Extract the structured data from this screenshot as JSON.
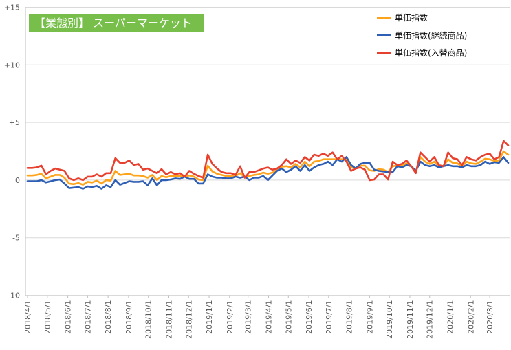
{
  "title_box_color": "#77bf4a",
  "chart_data": {
    "type": "line",
    "title": "【業態別】 スーパーマーケット",
    "xlabel": "",
    "ylabel": "",
    "xlim": [
      "2018/4/1",
      "2020/3/29"
    ],
    "ylim": [
      -10,
      15
    ],
    "y_ticks": [
      15,
      10,
      5,
      0,
      -5,
      -10
    ],
    "y_tick_labels": [
      "+15",
      "+10",
      "+5",
      "0",
      "-5",
      "-10"
    ],
    "x_ticks": [
      "2018/4/1",
      "2018/5/1",
      "2018/6/1",
      "2018/7/1",
      "2018/8/1",
      "2018/9/1",
      "2018/10/1",
      "2018/11/1",
      "2018/12/1",
      "2019/1/1",
      "2019/2/1",
      "2019/3/1",
      "2019/4/1",
      "2019/5/1",
      "2019/6/1",
      "2019/7/1",
      "2019/8/1",
      "2019/9/1",
      "2019/10/1",
      "2019/11/1",
      "2019/12/1",
      "2020/1/1",
      "2020/2/1",
      "2020/3/1"
    ],
    "grid": true,
    "legend_position": "top-right",
    "x": [
      "2018/4/1",
      "2018/4/8",
      "2018/4/15",
      "2018/4/22",
      "2018/4/29",
      "2018/5/6",
      "2018/5/13",
      "2018/5/20",
      "2018/5/27",
      "2018/6/3",
      "2018/6/10",
      "2018/6/17",
      "2018/6/24",
      "2018/7/1",
      "2018/7/8",
      "2018/7/15",
      "2018/7/22",
      "2018/7/29",
      "2018/8/5",
      "2018/8/12",
      "2018/8/19",
      "2018/8/26",
      "2018/9/2",
      "2018/9/9",
      "2018/9/16",
      "2018/9/23",
      "2018/9/30",
      "2018/10/7",
      "2018/10/14",
      "2018/10/21",
      "2018/10/28",
      "2018/11/4",
      "2018/11/11",
      "2018/11/18",
      "2018/11/25",
      "2018/12/2",
      "2018/12/9",
      "2018/12/16",
      "2018/12/23",
      "2018/12/30",
      "2019/1/6",
      "2019/1/13",
      "2019/1/20",
      "2019/1/27",
      "2019/2/3",
      "2019/2/10",
      "2019/2/17",
      "2019/2/24",
      "2019/3/3",
      "2019/3/10",
      "2019/3/17",
      "2019/3/24",
      "2019/3/31",
      "2019/4/7",
      "2019/4/14",
      "2019/4/21",
      "2019/4/28",
      "2019/5/5",
      "2019/5/12",
      "2019/5/19",
      "2019/5/26",
      "2019/6/2",
      "2019/6/9",
      "2019/6/16",
      "2019/6/23",
      "2019/6/30",
      "2019/7/7",
      "2019/7/14",
      "2019/7/21",
      "2019/7/28",
      "2019/8/4",
      "2019/8/11",
      "2019/8/18",
      "2019/8/25",
      "2019/9/1",
      "2019/9/8",
      "2019/9/15",
      "2019/9/22",
      "2019/9/29",
      "2019/10/6",
      "2019/10/13",
      "2019/10/20",
      "2019/10/27",
      "2019/11/3",
      "2019/11/10",
      "2019/11/17",
      "2019/11/24",
      "2019/12/1",
      "2019/12/8",
      "2019/12/15",
      "2019/12/22",
      "2019/12/29",
      "2020/1/5",
      "2020/1/12",
      "2020/1/19",
      "2020/1/26",
      "2020/2/2",
      "2020/2/9",
      "2020/2/16",
      "2020/2/23",
      "2020/3/1",
      "2020/3/8",
      "2020/3/15",
      "2020/3/22",
      "2020/3/29"
    ],
    "series": [
      {
        "name": "単価指数",
        "color": "#ffa31a",
        "values": [
          0.4,
          0.4,
          0.45,
          0.55,
          0.15,
          0.3,
          0.45,
          0.45,
          0.2,
          -0.3,
          -0.35,
          -0.25,
          -0.4,
          -0.15,
          -0.2,
          -0.05,
          -0.3,
          0.0,
          -0.05,
          0.8,
          0.45,
          0.5,
          0.55,
          0.4,
          0.4,
          0.35,
          0.2,
          0.45,
          0.0,
          0.35,
          0.25,
          0.35,
          0.35,
          0.35,
          0.3,
          0.4,
          0.3,
          0.05,
          0.0,
          1.25,
          0.75,
          0.55,
          0.45,
          0.35,
          0.35,
          0.35,
          0.6,
          0.25,
          0.35,
          0.45,
          0.5,
          0.65,
          0.55,
          0.65,
          0.9,
          1.15,
          1.2,
          1.1,
          1.4,
          1.1,
          1.6,
          1.2,
          1.6,
          1.65,
          1.8,
          1.8,
          1.8,
          1.8,
          1.8,
          1.8,
          1.1,
          1.0,
          1.25,
          1.25,
          0.85,
          0.8,
          0.95,
          0.9,
          0.7,
          1.2,
          1.25,
          1.25,
          1.45,
          1.2,
          0.7,
          2.0,
          1.6,
          1.4,
          1.6,
          1.2,
          1.2,
          1.8,
          1.5,
          1.45,
          1.2,
          1.6,
          1.45,
          1.4,
          1.6,
          1.85,
          1.8,
          1.65,
          1.7,
          2.5,
          2.2
        ]
      },
      {
        "name": "単価指数(継続商品)",
        "color": "#2e5fb5",
        "values": [
          -0.1,
          -0.1,
          -0.1,
          0.0,
          -0.2,
          -0.1,
          0.0,
          0.05,
          -0.3,
          -0.7,
          -0.65,
          -0.6,
          -0.75,
          -0.55,
          -0.6,
          -0.5,
          -0.75,
          -0.45,
          -0.6,
          0.0,
          -0.4,
          -0.25,
          -0.1,
          -0.15,
          -0.15,
          -0.1,
          -0.45,
          0.15,
          -0.45,
          0.0,
          0.0,
          0.05,
          0.15,
          0.1,
          0.3,
          0.1,
          0.1,
          -0.3,
          -0.3,
          0.5,
          0.3,
          0.2,
          0.2,
          0.15,
          0.15,
          0.3,
          0.2,
          0.3,
          0.0,
          0.2,
          0.2,
          0.35,
          0.0,
          0.4,
          0.8,
          1.0,
          0.7,
          0.9,
          1.2,
          0.8,
          1.3,
          0.8,
          1.1,
          1.3,
          1.4,
          1.6,
          1.3,
          1.8,
          1.6,
          2.0,
          1.3,
          1.0,
          1.4,
          1.5,
          1.5,
          0.9,
          0.8,
          0.75,
          0.7,
          0.7,
          1.2,
          1.1,
          1.3,
          1.2,
          0.8,
          1.6,
          1.3,
          1.2,
          1.3,
          1.1,
          1.2,
          1.3,
          1.2,
          1.2,
          1.1,
          1.3,
          1.2,
          1.2,
          1.3,
          1.6,
          1.4,
          1.55,
          1.5,
          2.0,
          1.5
        ]
      },
      {
        "name": "単価指数(入替商品)",
        "color": "#e8402e",
        "values": [
          1.05,
          1.05,
          1.1,
          1.25,
          0.5,
          0.8,
          1.0,
          0.9,
          0.8,
          0.15,
          0.0,
          0.15,
          0.0,
          0.3,
          0.3,
          0.5,
          0.3,
          0.6,
          0.6,
          1.9,
          1.5,
          1.5,
          1.7,
          1.3,
          1.4,
          0.9,
          1.0,
          0.8,
          0.6,
          0.95,
          0.5,
          0.7,
          0.5,
          0.6,
          0.3,
          0.8,
          0.55,
          0.35,
          0.2,
          2.2,
          1.4,
          1.0,
          0.7,
          0.6,
          0.6,
          0.45,
          1.2,
          0.2,
          0.7,
          0.7,
          0.85,
          1.0,
          1.1,
          0.9,
          1.0,
          1.3,
          1.8,
          1.4,
          1.7,
          1.5,
          2.0,
          1.7,
          2.2,
          2.1,
          2.3,
          2.1,
          2.4,
          1.8,
          2.1,
          1.6,
          0.8,
          1.0,
          1.1,
          0.9,
          0.0,
          0.05,
          0.5,
          0.5,
          0.05,
          1.6,
          1.3,
          1.4,
          1.7,
          1.2,
          0.6,
          2.4,
          2.0,
          1.6,
          2.0,
          1.3,
          1.2,
          2.4,
          1.9,
          1.8,
          1.3,
          2.0,
          1.8,
          1.7,
          2.0,
          2.2,
          2.3,
          1.8,
          2.0,
          3.4,
          3.0
        ]
      }
    ]
  }
}
